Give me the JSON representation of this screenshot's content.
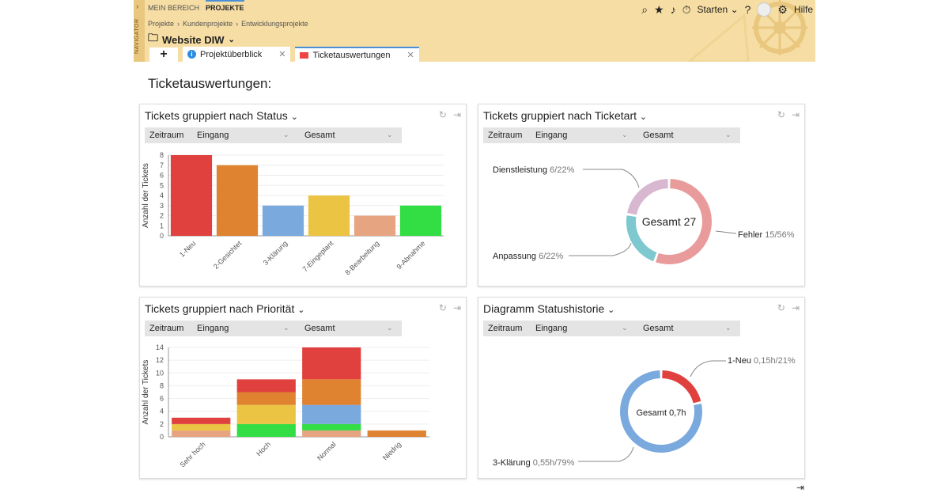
{
  "nav": {
    "vertical_label": "NAVIGATOR",
    "mein_bereich": "MEIN BEREICH",
    "projekte": "PROJEKTE"
  },
  "breadcrumb": [
    "Projekte",
    "Kundenprojekte",
    "Entwicklungsprojekte"
  ],
  "project": "Website DIW",
  "header_right": {
    "starten": "Starten",
    "hilfe": "Hilfe"
  },
  "tabs": [
    {
      "label": "Projektüberblick"
    },
    {
      "label": "Ticketauswertungen"
    }
  ],
  "page_title": "Ticketauswertungen:",
  "filters": {
    "zeitraum": "Zeitraum",
    "eingang": "Eingang",
    "gesamt": "Gesamt"
  },
  "colors": {
    "accent": "#4a90d9",
    "header_bg": "#f6dda3"
  },
  "panels": {
    "status": {
      "title": "Tickets gruppiert  nach Status"
    },
    "ticketart": {
      "title": "Tickets gruppiert  nach Ticketart"
    },
    "prioritaet": {
      "title": "Tickets gruppiert  nach Priorität"
    },
    "historie": {
      "title": "Diagramm Statushistorie"
    }
  },
  "chart_data": [
    {
      "type": "bar",
      "ylabel": "Anzahl der Tickets",
      "ylim": [
        0,
        8
      ],
      "categories": [
        "1-Neu",
        "2-Gesichtet",
        "3-Klärung",
        "7-Eingeplant",
        "8-Bearbeitung",
        "9-Abnahme"
      ],
      "values": [
        8,
        7,
        3,
        4,
        2,
        3
      ],
      "colors": [
        "#e0413e",
        "#e08331",
        "#7aa9de",
        "#ecc443",
        "#e7a481",
        "#33dd44"
      ]
    },
    {
      "type": "pie",
      "donut": true,
      "center_label": "Gesamt 27",
      "slices": [
        {
          "name": "Fehler",
          "value": 15,
          "label": "15/56%",
          "color": "#e99b9b"
        },
        {
          "name": "Anpassung",
          "value": 6,
          "label": "6/22%",
          "color": "#7ec8d0"
        },
        {
          "name": "Dienstleistung",
          "value": 6,
          "label": "6/22%",
          "color": "#d8b8d0"
        }
      ]
    },
    {
      "type": "bar",
      "stacked": true,
      "ylabel": "Anzahl der Tickets",
      "ylim": [
        0,
        14
      ],
      "categories": [
        "Sehr hoch",
        "Hoch",
        "Normal",
        "Niedrig"
      ],
      "series": [
        {
          "color": "#e7a481",
          "values": [
            1,
            0,
            1,
            0
          ]
        },
        {
          "color": "#33dd44",
          "values": [
            0,
            2,
            1,
            0
          ]
        },
        {
          "color": "#e08331",
          "values": [
            0,
            0,
            0,
            1
          ]
        },
        {
          "color": "#7aa9de",
          "values": [
            0,
            0,
            3,
            0
          ]
        },
        {
          "color": "#ecc443",
          "values": [
            1,
            3,
            0,
            0
          ]
        },
        {
          "color": "#e08331",
          "values": [
            0,
            2,
            4,
            0
          ]
        },
        {
          "color": "#e0413e",
          "values": [
            1,
            2,
            5,
            0
          ]
        }
      ]
    },
    {
      "type": "pie",
      "donut": true,
      "center_label": "Gesamt 0,7h",
      "slices": [
        {
          "name": "1-Neu",
          "value": 0.15,
          "label": "0,15h/21%",
          "color": "#e0413e"
        },
        {
          "name": "3-Klärung",
          "value": 0.55,
          "label": "0,55h/79%",
          "color": "#7aa9de"
        }
      ]
    }
  ]
}
